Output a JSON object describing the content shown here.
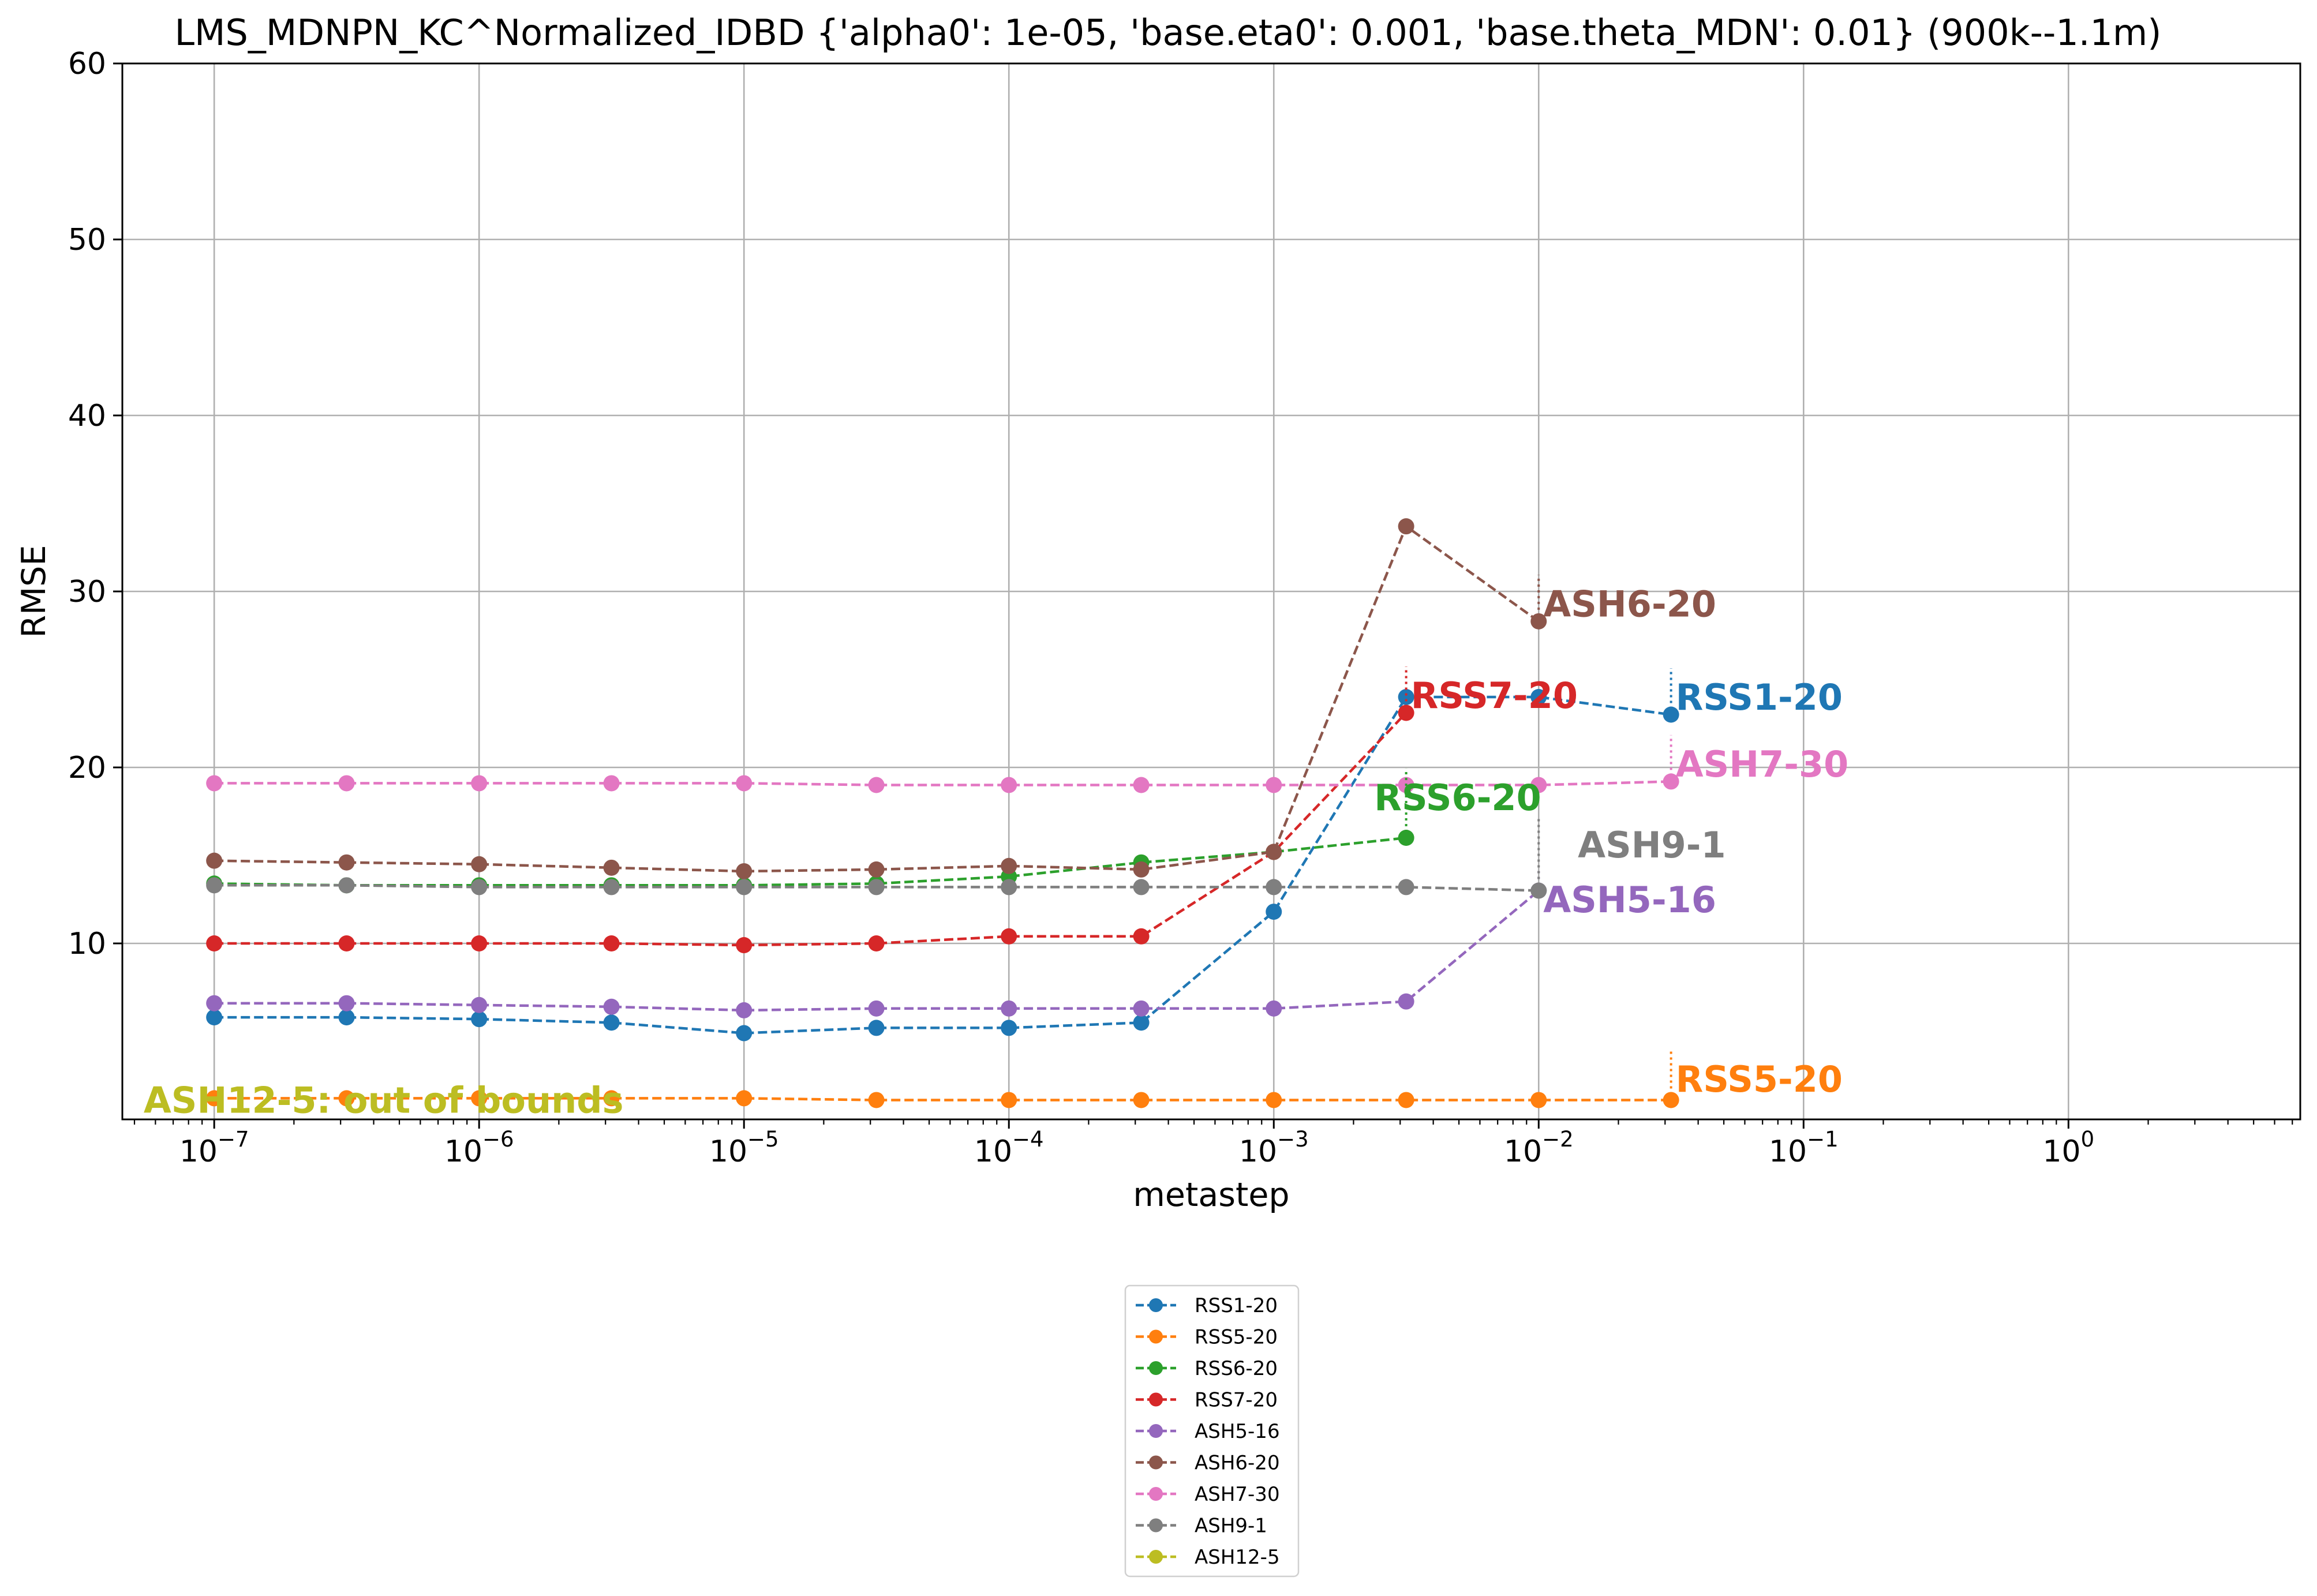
{
  "chart_data": {
    "type": "line",
    "title": "LMS_MDNPN_KC^Normalized_IDBD   {'alpha0': 1e-05, 'base.eta0': 0.001, 'base.theta_MDN': 0.01} (900k--1.1m)",
    "xlabel": "metastep",
    "ylabel": "RMSE",
    "xscale": "log",
    "xlim": [
      4.5e-08,
      7.5
    ],
    "ylim": [
      0,
      60
    ],
    "grid": true,
    "legend_position": "bottom-center",
    "x_ticks": [
      {
        "value": 1e-07,
        "base": "10",
        "exp": "−7"
      },
      {
        "value": 1e-06,
        "base": "10",
        "exp": "−6"
      },
      {
        "value": 1e-05,
        "base": "10",
        "exp": "−5"
      },
      {
        "value": 0.0001,
        "base": "10",
        "exp": "−4"
      },
      {
        "value": 0.001,
        "base": "10",
        "exp": "−3"
      },
      {
        "value": 0.01,
        "base": "10",
        "exp": "−2"
      },
      {
        "value": 0.1,
        "base": "10",
        "exp": "−1"
      },
      {
        "value": 1,
        "base": "10",
        "exp": "0"
      }
    ],
    "y_ticks": [
      10,
      20,
      30,
      40,
      50,
      60
    ],
    "series": [
      {
        "name": "RSS1-20",
        "color": "#1f77b4",
        "x": [
          1e-07,
          3.16e-07,
          1e-06,
          3.16e-06,
          1e-05,
          3.16e-05,
          0.0001,
          0.000316,
          0.001,
          0.00316,
          0.01,
          0.0316
        ],
        "y": [
          5.8,
          5.8,
          5.7,
          5.5,
          4.9,
          5.2,
          5.2,
          5.5,
          11.8,
          24.0,
          24.0,
          23.0
        ]
      },
      {
        "name": "RSS5-20",
        "color": "#ff7f0e",
        "x": [
          1e-07,
          3.16e-07,
          1e-06,
          3.16e-06,
          1e-05,
          3.16e-05,
          0.0001,
          0.000316,
          0.001,
          0.00316,
          0.01,
          0.0316
        ],
        "y": [
          1.2,
          1.2,
          1.2,
          1.2,
          1.2,
          1.1,
          1.1,
          1.1,
          1.1,
          1.1,
          1.1,
          1.1
        ]
      },
      {
        "name": "RSS6-20",
        "color": "#2ca02c",
        "x": [
          1e-07,
          3.16e-07,
          1e-06,
          3.16e-06,
          1e-05,
          3.16e-05,
          0.0001,
          0.000316,
          0.001,
          0.00316
        ],
        "y": [
          13.4,
          13.3,
          13.3,
          13.3,
          13.3,
          13.4,
          13.8,
          14.6,
          15.2,
          16.0
        ]
      },
      {
        "name": "RSS7-20",
        "color": "#d62728",
        "x": [
          1e-07,
          3.16e-07,
          1e-06,
          3.16e-06,
          1e-05,
          3.16e-05,
          0.0001,
          0.000316,
          0.001,
          0.00316
        ],
        "y": [
          10.0,
          10.0,
          10.0,
          10.0,
          9.9,
          10.0,
          10.4,
          10.4,
          15.2,
          23.1
        ]
      },
      {
        "name": "ASH5-16",
        "color": "#9467bd",
        "x": [
          1e-07,
          3.16e-07,
          1e-06,
          3.16e-06,
          1e-05,
          3.16e-05,
          0.0001,
          0.000316,
          0.001,
          0.00316,
          0.01
        ],
        "y": [
          6.6,
          6.6,
          6.5,
          6.4,
          6.2,
          6.3,
          6.3,
          6.3,
          6.3,
          6.7,
          13.0
        ]
      },
      {
        "name": "ASH6-20",
        "color": "#8c564b",
        "x": [
          1e-07,
          3.16e-07,
          1e-06,
          3.16e-06,
          1e-05,
          3.16e-05,
          0.0001,
          0.000316,
          0.001,
          0.00316,
          0.01
        ],
        "y": [
          14.7,
          14.6,
          14.5,
          14.3,
          14.1,
          14.2,
          14.4,
          14.2,
          15.2,
          33.7,
          28.3
        ]
      },
      {
        "name": "ASH7-30",
        "color": "#e377c2",
        "x": [
          1e-07,
          3.16e-07,
          1e-06,
          3.16e-06,
          1e-05,
          3.16e-05,
          0.0001,
          0.000316,
          0.001,
          0.00316,
          0.01,
          0.0316
        ],
        "y": [
          19.1,
          19.1,
          19.1,
          19.1,
          19.1,
          19.0,
          19.0,
          19.0,
          19.0,
          19.0,
          19.0,
          19.2
        ]
      },
      {
        "name": "ASH9-1",
        "color": "#7f7f7f",
        "x": [
          1e-07,
          3.16e-07,
          1e-06,
          3.16e-06,
          1e-05,
          3.16e-05,
          0.0001,
          0.000316,
          0.001,
          0.00316,
          0.01
        ],
        "y": [
          13.3,
          13.3,
          13.2,
          13.2,
          13.2,
          13.2,
          13.2,
          13.2,
          13.2,
          13.2,
          13.0
        ]
      },
      {
        "name": "ASH12-5",
        "color": "#bcbd22",
        "x": [],
        "y": []
      }
    ],
    "annotations": [
      {
        "text": "RSS1-20",
        "series": "RSS1-20",
        "color": "#1f77b4",
        "x": 0.0316,
        "y": 24.0,
        "anchor_x": 0.0316,
        "anchor_y": 23.0
      },
      {
        "text": "RSS5-20",
        "series": "RSS5-20",
        "color": "#ff7f0e",
        "x": 0.0316,
        "y": 2.3,
        "anchor_x": 0.0316,
        "anchor_y": 1.1
      },
      {
        "text": "RSS6-20",
        "series": "RSS6-20",
        "color": "#2ca02c",
        "x": 0.0023,
        "y": 18.3,
        "anchor_x": 0.00316,
        "anchor_y": 16.0
      },
      {
        "text": "RSS7-20",
        "series": "RSS7-20",
        "color": "#d62728",
        "x": 0.00316,
        "y": 24.1,
        "anchor_x": 0.00316,
        "anchor_y": 23.1
      },
      {
        "text": "ASH5-16",
        "series": "ASH5-16",
        "color": "#9467bd",
        "x": 0.01,
        "y": 12.5,
        "anchor_x": 0.01,
        "anchor_y": 13.0
      },
      {
        "text": "ASH6-20",
        "series": "ASH6-20",
        "color": "#8c564b",
        "x": 0.01,
        "y": 29.3,
        "anchor_x": 0.01,
        "anchor_y": 28.3
      },
      {
        "text": "ASH7-30",
        "series": "ASH7-30",
        "color": "#e377c2",
        "x": 0.0316,
        "y": 20.2,
        "anchor_x": 0.0316,
        "anchor_y": 19.2
      },
      {
        "text": "ASH9-1",
        "series": "ASH9-1",
        "color": "#7f7f7f",
        "x": 0.0135,
        "y": 15.6,
        "anchor_x": 0.01,
        "anchor_y": 13.0
      },
      {
        "text": "ASH12-5: out of bounds",
        "series": "ASH12-5",
        "color": "#bcbd22",
        "x": 5.2e-08,
        "y": 1.1
      }
    ]
  }
}
